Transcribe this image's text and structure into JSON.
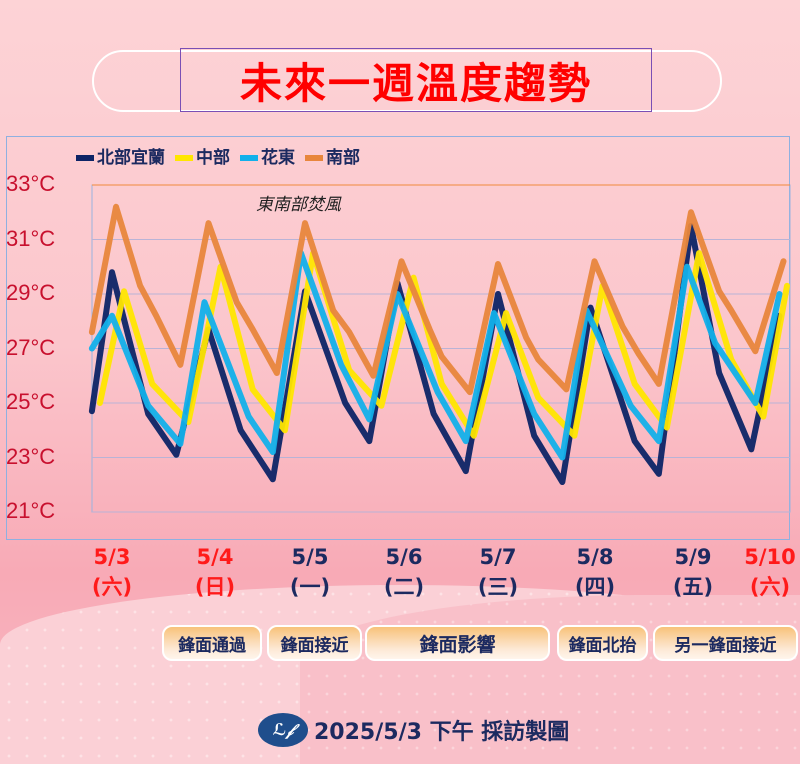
{
  "header": {
    "title": "未來一週溫度趨勢"
  },
  "chart_data": {
    "type": "line",
    "title": "未來一週溫度趨勢",
    "xlabel": "",
    "ylabel": "",
    "ylim": [
      21,
      33
    ],
    "y_ticks": [
      "33°C",
      "31°C",
      "29°C",
      "27°C",
      "25°C",
      "23°C",
      "21°C"
    ],
    "y_tick_values": [
      33,
      31,
      29,
      27,
      25,
      23,
      21
    ],
    "x_ticks": [
      {
        "date": "5/3",
        "weekday": "(六)",
        "color": "#ff1a1a"
      },
      {
        "date": "5/4",
        "weekday": "(日)",
        "color": "#ff1a1a"
      },
      {
        "date": "5/5",
        "weekday": "(一)",
        "color": "#1c2a60"
      },
      {
        "date": "5/6",
        "weekday": "(二)",
        "color": "#1c2a60"
      },
      {
        "date": "5/7",
        "weekday": "(三)",
        "color": "#1c2a60"
      },
      {
        "date": "5/8",
        "weekday": "(四)",
        "color": "#1c2a60"
      },
      {
        "date": "5/9",
        "weekday": "(五)",
        "color": "#1c2a60"
      },
      {
        "date": "5/10",
        "weekday": "(六)",
        "color": "#ff1a1a"
      }
    ],
    "grid": true,
    "legend_position": "top-left",
    "annotation": "東南部焚風",
    "series": [
      {
        "name": "北部宜蘭",
        "color": "#0d2466",
        "points": [
          [
            "5/3 09",
            24.7
          ],
          [
            "5/3 14",
            29.8
          ],
          [
            "5/3 23",
            24.6
          ],
          [
            "5/4 06",
            23.1
          ],
          [
            "5/4 14",
            27.7
          ],
          [
            "5/4 22",
            24.0
          ],
          [
            "5/5 06",
            22.2
          ],
          [
            "5/5 14",
            29.1
          ],
          [
            "5/6 00",
            25.0
          ],
          [
            "5/6 06",
            23.6
          ],
          [
            "5/6 13",
            29.4
          ],
          [
            "5/6 22",
            24.6
          ],
          [
            "5/7 06",
            22.5
          ],
          [
            "5/7 14",
            29.0
          ],
          [
            "5/7 23",
            23.8
          ],
          [
            "5/8 06",
            22.1
          ],
          [
            "5/8 13",
            28.5
          ],
          [
            "5/9 00",
            23.6
          ],
          [
            "5/9 06",
            22.4
          ],
          [
            "5/9 14",
            31.5
          ],
          [
            "5/9 21",
            26.1
          ],
          [
            "5/10 05",
            23.3
          ],
          [
            "5/10 12",
            28.2
          ]
        ]
      },
      {
        "name": "中部",
        "color": "#ffe600",
        "points": [
          [
            "5/3 11",
            25.0
          ],
          [
            "5/3 17",
            29.1
          ],
          [
            "5/4 00",
            25.7
          ],
          [
            "5/4 09",
            24.3
          ],
          [
            "5/4 17",
            30.0
          ],
          [
            "5/5 01",
            25.5
          ],
          [
            "5/5 09",
            24.0
          ],
          [
            "5/5 16",
            30.5
          ],
          [
            "5/6 01",
            26.2
          ],
          [
            "5/6 09",
            24.9
          ],
          [
            "5/6 17",
            29.6
          ],
          [
            "5/7 00",
            25.7
          ],
          [
            "5/7 08",
            23.8
          ],
          [
            "5/7 16",
            28.3
          ],
          [
            "5/8 00",
            25.2
          ],
          [
            "5/8 09",
            23.8
          ],
          [
            "5/8 16",
            29.3
          ],
          [
            "5/9 00",
            25.7
          ],
          [
            "5/9 08",
            24.1
          ],
          [
            "5/9 16",
            30.5
          ],
          [
            "5/10 00",
            26.6
          ],
          [
            "5/10 08",
            24.5
          ],
          [
            "5/10 14",
            29.3
          ]
        ]
      },
      {
        "name": "花東",
        "color": "#12b0ea",
        "points": [
          [
            "5/3 09",
            27.0
          ],
          [
            "5/3 14",
            28.2
          ],
          [
            "5/3 23",
            24.9
          ],
          [
            "5/4 07",
            23.5
          ],
          [
            "5/4 13",
            28.7
          ],
          [
            "5/5 00",
            24.5
          ],
          [
            "5/5 06",
            23.2
          ],
          [
            "5/5 13",
            30.5
          ],
          [
            "5/5 23",
            26.4
          ],
          [
            "5/6 06",
            24.4
          ],
          [
            "5/6 13",
            29.0
          ],
          [
            "5/6 23",
            25.4
          ],
          [
            "5/7 06",
            23.6
          ],
          [
            "5/7 13",
            28.3
          ],
          [
            "5/7 23",
            24.6
          ],
          [
            "5/8 06",
            23.0
          ],
          [
            "5/8 12",
            28.4
          ],
          [
            "5/8 23",
            24.9
          ],
          [
            "5/9 06",
            23.6
          ],
          [
            "5/9 13",
            30.0
          ],
          [
            "5/9 20",
            27.2
          ],
          [
            "5/10 06",
            25.0
          ],
          [
            "5/10 12",
            29.0
          ]
        ]
      },
      {
        "name": "南部",
        "color": "#e8863c",
        "points": [
          [
            "5/3 09",
            27.6
          ],
          [
            "5/3 15",
            32.2
          ],
          [
            "5/3 21",
            29.3
          ],
          [
            "5/4 01",
            28.2
          ],
          [
            "5/4 07",
            26.4
          ],
          [
            "5/4 14",
            31.6
          ],
          [
            "5/4 21",
            28.7
          ],
          [
            "5/5 01",
            27.7
          ],
          [
            "5/5 07",
            26.1
          ],
          [
            "5/5 14",
            31.6
          ],
          [
            "5/5 21",
            28.4
          ],
          [
            "5/6 01",
            27.6
          ],
          [
            "5/6 07",
            26.0
          ],
          [
            "5/6 14",
            30.2
          ],
          [
            "5/6 21",
            27.7
          ],
          [
            "5/7 00",
            26.7
          ],
          [
            "5/7 07",
            25.4
          ],
          [
            "5/7 14",
            30.1
          ],
          [
            "5/7 21",
            27.4
          ],
          [
            "5/8 00",
            26.6
          ],
          [
            "5/8 07",
            25.5
          ],
          [
            "5/8 14",
            30.2
          ],
          [
            "5/8 21",
            27.8
          ],
          [
            "5/9 01",
            26.8
          ],
          [
            "5/9 06",
            25.7
          ],
          [
            "5/9 14",
            32.0
          ],
          [
            "5/9 21",
            29.1
          ],
          [
            "5/10 00",
            28.4
          ],
          [
            "5/10 06",
            26.9
          ],
          [
            "5/10 13",
            30.2
          ]
        ]
      }
    ]
  },
  "events": [
    "鋒面通過",
    "鋒面接近",
    "鋒面影響",
    "鋒面北抬",
    "另一鋒面接近"
  ],
  "footer": {
    "logo_text": "ℒ𝒻",
    "text": "2025/5/3 下午 採訪製圖"
  }
}
